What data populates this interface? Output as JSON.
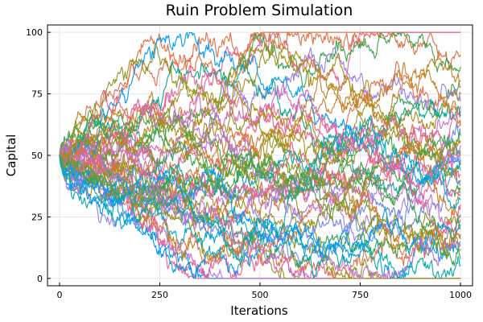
{
  "chart_data": {
    "type": "line",
    "title": "Ruin Problem Simulation",
    "xlabel": "Iterations",
    "ylabel": "Capital",
    "xlim": [
      -30,
      1030
    ],
    "ylim": [
      -3,
      103
    ],
    "xticks": [
      0,
      250,
      500,
      750,
      1000
    ],
    "xtick_labels": [
      "0",
      "250",
      "500",
      "750",
      "1000"
    ],
    "yticks": [
      0,
      25,
      50,
      75,
      100
    ],
    "ytick_labels": [
      "0",
      "25",
      "50",
      "75",
      "100"
    ],
    "grid": true,
    "legend": "none",
    "n_series": 50,
    "x_start": 0,
    "x_end": 1000,
    "start_value": 50,
    "absorbing_bounds": [
      0,
      100
    ],
    "series_colors": [
      "#009af9",
      "#e26f46",
      "#3da44d",
      "#c271d2",
      "#ac8d18",
      "#00a9ad",
      "#ed5e93",
      "#c68125",
      "#00a98d",
      "#8e971e",
      "#00a9ce",
      "#9b7fe9",
      "#618df6",
      "#f05f73",
      "#dd64b5",
      "#6a86e8"
    ],
    "series": [
      {
        "end": 100,
        "hits_bound_at": 505,
        "color": "#e26f46"
      },
      {
        "end": 100,
        "hits_bound_at": 765,
        "color": "#ed5e93"
      },
      {
        "end": 0,
        "hits_bound_at": 342,
        "color": "#ed5e93"
      },
      {
        "end": 0,
        "hits_bound_at": 372,
        "color": "#009af9"
      },
      {
        "end": 0,
        "hits_bound_at": 410,
        "color": "#c271d2"
      },
      {
        "end": 0,
        "hits_bound_at": 563,
        "color": "#8e971e"
      },
      {
        "end": 0,
        "hits_bound_at": 612,
        "color": "#ed5e93"
      },
      {
        "end": 0,
        "hits_bound_at": 688,
        "color": "#ac8d18"
      },
      {
        "end": 0,
        "hits_bound_at": 803,
        "color": "#8e971e"
      },
      {
        "end": 91,
        "color": "#e26f46"
      },
      {
        "end": 86,
        "color": "#3da44d"
      },
      {
        "end": 80,
        "color": "#3da44d"
      },
      {
        "end": 78,
        "color": "#c68125"
      },
      {
        "end": 75,
        "color": "#ac8d18"
      },
      {
        "end": 72,
        "color": "#9b7fe9"
      },
      {
        "end": 70,
        "color": "#e26f46"
      },
      {
        "end": 68,
        "color": "#c271d2"
      },
      {
        "end": 66,
        "color": "#00a98d"
      },
      {
        "end": 64,
        "color": "#ed5e93"
      },
      {
        "end": 62,
        "color": "#c68125"
      },
      {
        "end": 60,
        "color": "#618df6"
      },
      {
        "end": 58,
        "color": "#3da44d"
      },
      {
        "end": 56,
        "color": "#ac8d18"
      },
      {
        "end": 54,
        "color": "#c271d2"
      },
      {
        "end": 52,
        "color": "#e26f46"
      },
      {
        "end": 50,
        "color": "#3da44d"
      },
      {
        "end": 48,
        "color": "#009af9"
      },
      {
        "end": 47,
        "color": "#8e971e"
      },
      {
        "end": 46,
        "color": "#9b7fe9"
      },
      {
        "end": 44,
        "color": "#00a9ad"
      },
      {
        "end": 42,
        "color": "#ed5e93"
      },
      {
        "end": 40,
        "color": "#ac8d18"
      },
      {
        "end": 38,
        "color": "#6a86e8"
      },
      {
        "end": 36,
        "color": "#c68125"
      },
      {
        "end": 35,
        "color": "#3da44d"
      },
      {
        "end": 34,
        "color": "#dd64b5"
      },
      {
        "end": 32,
        "color": "#00a9ce"
      },
      {
        "end": 30,
        "color": "#e26f46"
      },
      {
        "end": 28,
        "color": "#c271d2"
      },
      {
        "end": 26,
        "color": "#8e971e"
      },
      {
        "end": 24,
        "color": "#ed5e93"
      },
      {
        "end": 22,
        "color": "#009af9"
      },
      {
        "end": 20,
        "color": "#3da44d"
      },
      {
        "end": 18,
        "color": "#ac8d18"
      },
      {
        "end": 16,
        "color": "#e26f46"
      },
      {
        "end": 15,
        "color": "#009af9"
      },
      {
        "end": 14,
        "color": "#c271d2"
      },
      {
        "end": 12,
        "color": "#8e971e"
      },
      {
        "end": 8,
        "color": "#3da44d"
      },
      {
        "end": 5,
        "color": "#00a9ad"
      }
    ]
  }
}
